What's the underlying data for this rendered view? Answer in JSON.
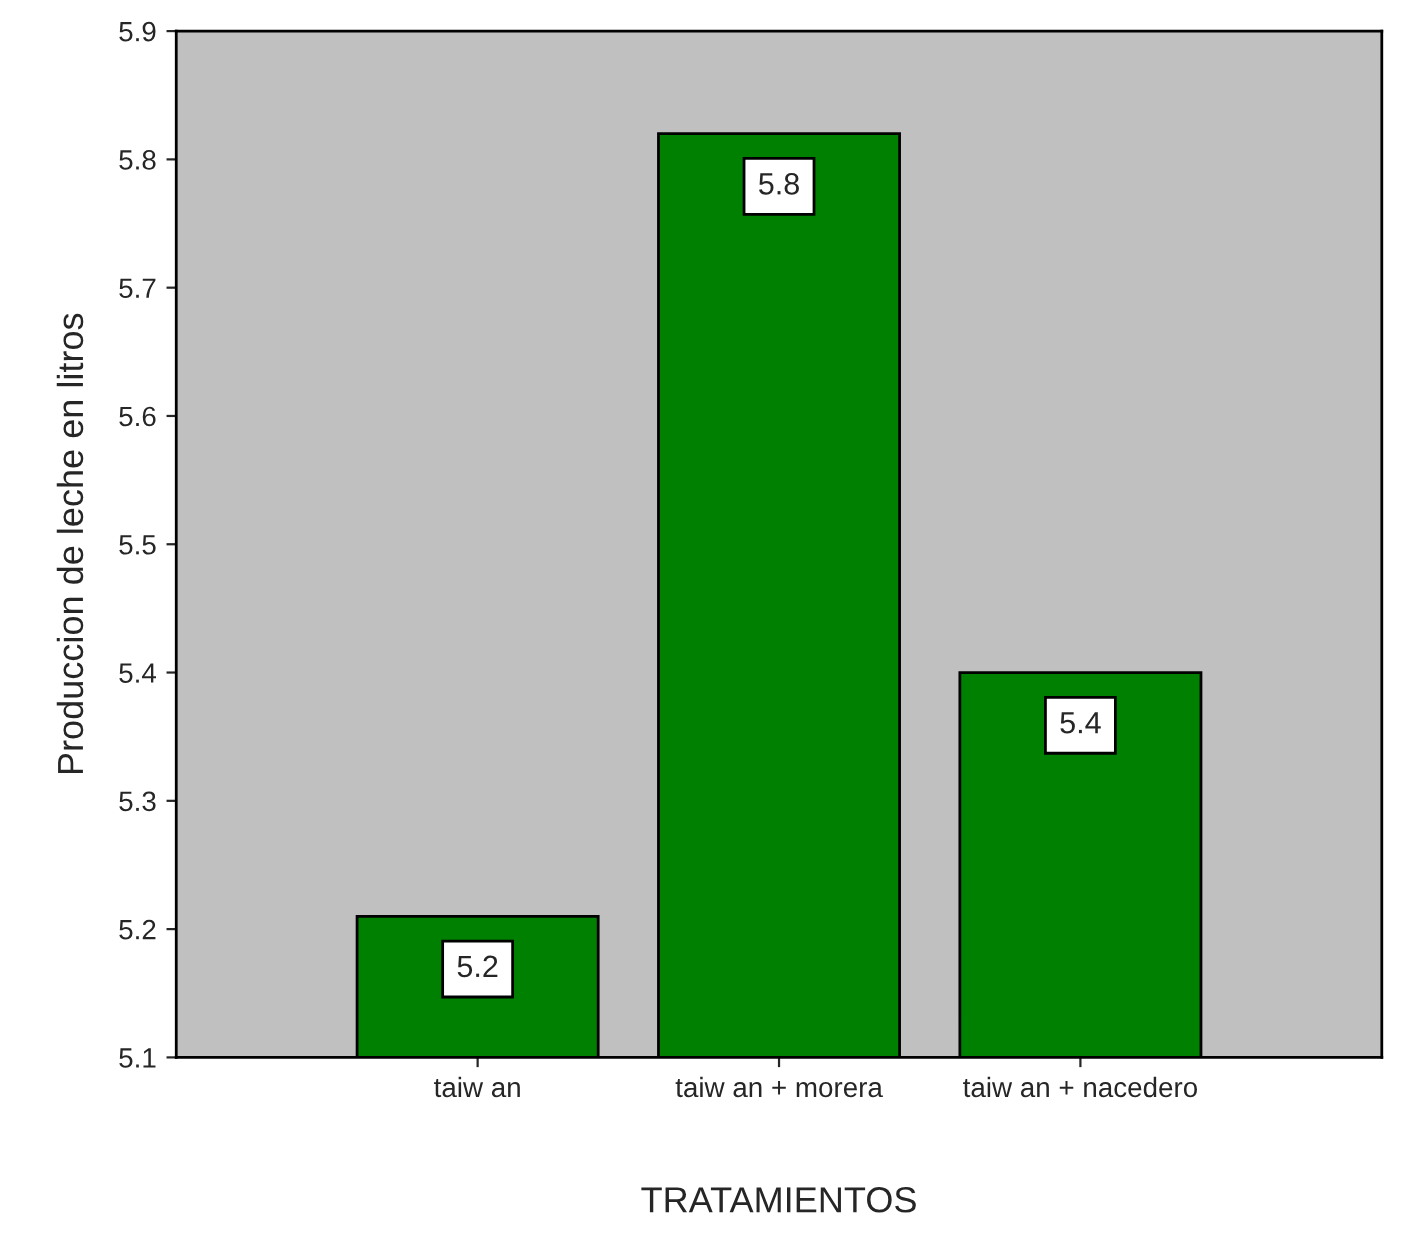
{
  "chart_data": {
    "type": "bar",
    "xlabel": "TRATAMIENTOS",
    "ylabel": "Produccion de leche en litros",
    "categories": [
      "taiw an",
      "taiw an + morera",
      "taiw an + nacedero"
    ],
    "values": [
      5.21,
      5.82,
      5.4
    ],
    "value_labels": [
      "5.2",
      "5.8",
      "5.4"
    ],
    "color": "#008000",
    "ylim": [
      5.1,
      5.9
    ],
    "yticks": [
      5.1,
      5.2,
      5.3,
      5.4,
      5.5,
      5.6,
      5.7,
      5.8,
      5.9
    ],
    "grid": false,
    "legend": false
  }
}
